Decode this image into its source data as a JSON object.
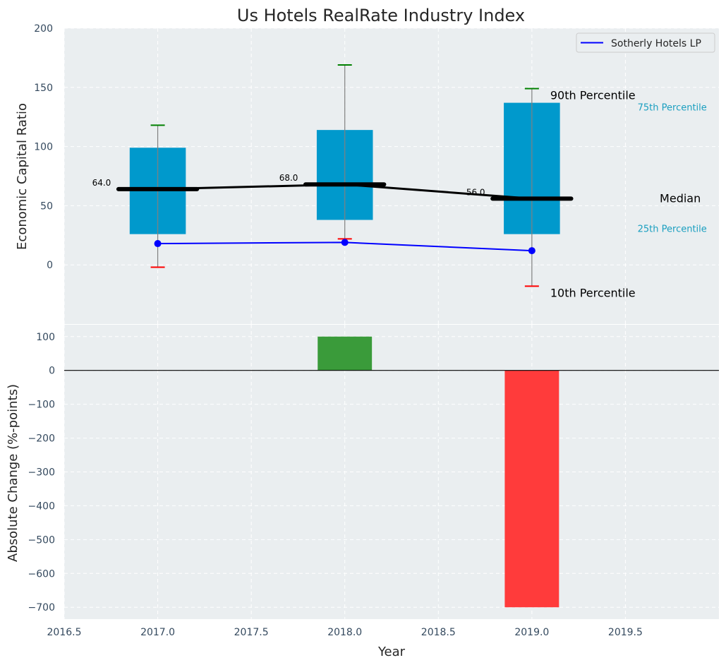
{
  "chart_data": [
    {
      "type": "box",
      "title": "Us Hotels RealRate Industry Index",
      "ylabel": "Economic Capital Ratio",
      "xlim": [
        2016.5,
        2020.0
      ],
      "ylim": [
        -50,
        200
      ],
      "yticks": [
        0,
        50,
        100,
        150,
        200
      ],
      "grid": true,
      "colors": {
        "box": "#0099cc",
        "median": "#000000",
        "whisker": "#808080",
        "p90_cap": "#008000",
        "p10_cap": "#ff0000",
        "company_line": "#0000ff",
        "annotation_small": "#1a9fc0",
        "background": "#eaeef0"
      },
      "years": [
        2017,
        2018,
        2019
      ],
      "p10": [
        -2,
        22,
        -18
      ],
      "p25": [
        26,
        38,
        26
      ],
      "median": [
        64,
        68,
        56
      ],
      "p75": [
        99,
        114,
        137
      ],
      "p90": [
        118,
        169,
        149
      ],
      "median_labels": [
        "64.0",
        "68.0",
        "56.0"
      ],
      "series": [
        {
          "name": "Sotherly Hotels LP",
          "values": [
            18,
            19,
            12
          ]
        }
      ],
      "legend": {
        "position": "top-right",
        "entries": [
          "Sotherly Hotels LP"
        ]
      },
      "annotations": {
        "p90": "90th Percentile",
        "p75": "75th Percentile",
        "median": "Median",
        "p25": "25th Percentile",
        "p10": "10th Percentile"
      }
    },
    {
      "type": "bar",
      "xlabel": "Year",
      "ylabel": "Absolute Change (%-points)",
      "xlim": [
        2016.5,
        2020.0
      ],
      "ylim": [
        -735,
        135
      ],
      "yticks": [
        100,
        0,
        -100,
        -200,
        -300,
        -400,
        -500,
        -600,
        -700
      ],
      "xticks": [
        "2016.5",
        "2017.0",
        "2017.5",
        "2018.0",
        "2018.5",
        "2019.0",
        "2019.5"
      ],
      "grid": true,
      "categories": [
        2018,
        2019
      ],
      "values": [
        100,
        -700
      ],
      "colors": {
        "positive": "#3a9b3a",
        "negative": "#ff3b3b",
        "zero_line": "#000000"
      }
    }
  ]
}
